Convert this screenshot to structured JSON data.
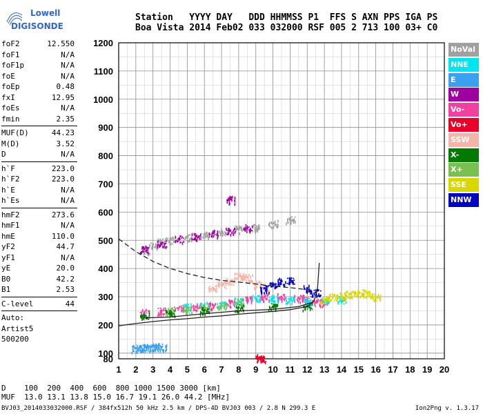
{
  "logo": {
    "line1": "Lowell",
    "line2": "DIGISONDE"
  },
  "header": {
    "line1": "Station   YYYY DAY   DDD HHMMSS P1  FFS S AXN PPS IGA PS",
    "line2": "Boa Vista 2014 Feb02 033 032000 RSF 005 2 713 100 03+ C0"
  },
  "params": {
    "group1": [
      {
        "label": "foF2",
        "value": "12.550"
      },
      {
        "label": "foF1",
        "value": "N/A"
      },
      {
        "label": "foF1p",
        "value": "N/A"
      },
      {
        "label": "foE",
        "value": "N/A"
      },
      {
        "label": "foEp",
        "value": "0.48"
      },
      {
        "label": "fxI",
        "value": "12.95"
      },
      {
        "label": "foEs",
        "value": "N/A"
      },
      {
        "label": "fmin",
        "value": "2.35"
      }
    ],
    "group2": [
      {
        "label": "MUF(D)",
        "value": "44.23"
      },
      {
        "label": "M(D)",
        "value": "3.52"
      },
      {
        "label": "D",
        "value": "N/A"
      }
    ],
    "group3": [
      {
        "label": "h`F",
        "value": "223.0"
      },
      {
        "label": "h`F2",
        "value": "223.0"
      },
      {
        "label": "h`E",
        "value": "N/A"
      },
      {
        "label": "h`Es",
        "value": "N/A"
      }
    ],
    "group4": [
      {
        "label": "hmF2",
        "value": "273.6"
      },
      {
        "label": "hmF1",
        "value": "N/A"
      },
      {
        "label": "hmE",
        "value": "110.0"
      },
      {
        "label": "yF2",
        "value": "44.7"
      },
      {
        "label": "yF1",
        "value": "N/A"
      },
      {
        "label": "yE",
        "value": "20.0"
      },
      {
        "label": "B0",
        "value": "42.2"
      },
      {
        "label": "B1",
        "value": "2.53"
      }
    ],
    "clevel": {
      "label": "C-level",
      "value": "44"
    },
    "auto": [
      "Auto:",
      "Artist5",
      "500200"
    ]
  },
  "legend": [
    {
      "label": "NoVal",
      "color": "#a0a0a0"
    },
    {
      "label": "NNE",
      "color": "#00e5ee"
    },
    {
      "label": "E",
      "color": "#3aa0f0"
    },
    {
      "label": "W",
      "color": "#a000a0"
    },
    {
      "label": "Vo-",
      "color": "#f040a0"
    },
    {
      "label": "Vo+",
      "color": "#e8002a"
    },
    {
      "label": "SSW",
      "color": "#f5b4a8"
    },
    {
      "label": "X-",
      "color": "#007a00"
    },
    {
      "label": "X+",
      "color": "#78c050"
    },
    {
      "label": "SSE",
      "color": "#d8d800"
    },
    {
      "label": "NNW",
      "color": "#0000c0"
    }
  ],
  "bottom": {
    "line1": "D    100  200  400  600  800 1000 1500 3000 [km]",
    "line2": "MUF  13.0 13.1 13.8 15.0 16.7 19.1 26.0 44.2 [MHz]"
  },
  "footer": {
    "left": "BVJ03_2014033032000.RSF / 384fx512h 50 kHz 2.5 km / DPS-4D BVJ03 003 / 2.8 N 299.3 E",
    "right": "Ion2Png v. 1.3.17"
  },
  "chart_data": {
    "type": "scatter",
    "title": "",
    "xlabel": "",
    "ylabel": "",
    "xlim": [
      1,
      20
    ],
    "ylim": [
      80,
      1200
    ],
    "xticks": [
      1,
      2,
      3,
      4,
      5,
      6,
      7,
      8,
      9,
      10,
      11,
      12,
      13,
      14,
      15,
      16,
      17,
      18,
      19,
      20
    ],
    "yticks": [
      80,
      100,
      200,
      300,
      400,
      500,
      600,
      700,
      800,
      900,
      1000,
      1100,
      1200
    ],
    "grid": true,
    "legend_position": "right",
    "series": [
      {
        "name": "E",
        "color": "#3aa0f0",
        "points": [
          [
            2.0,
            118
          ],
          [
            2.3,
            120
          ],
          [
            2.6,
            122
          ],
          [
            2.9,
            121
          ],
          [
            3.2,
            124
          ],
          [
            3.5,
            122
          ]
        ]
      },
      {
        "name": "Vo-",
        "color": "#f040a0",
        "points": [
          [
            2.5,
            245
          ],
          [
            3.5,
            250
          ],
          [
            4.5,
            260
          ],
          [
            5.5,
            265
          ],
          [
            6.5,
            270
          ],
          [
            7.5,
            280
          ],
          [
            8.5,
            295
          ],
          [
            9.5,
            300
          ],
          [
            10.5,
            300
          ],
          [
            11.5,
            295
          ],
          [
            12.0,
            290
          ],
          [
            12.5,
            280
          ],
          [
            13.0,
            280
          ]
        ]
      },
      {
        "name": "NoVal",
        "color": "#a0a0a0",
        "points": [
          [
            2.5,
            465
          ],
          [
            3.0,
            485
          ],
          [
            3.5,
            495
          ],
          [
            4.0,
            500
          ],
          [
            5.0,
            510
          ],
          [
            6.0,
            520
          ],
          [
            7.0,
            530
          ],
          [
            8.0,
            540
          ],
          [
            9.0,
            545
          ],
          [
            10.0,
            560
          ],
          [
            11.0,
            575
          ]
        ]
      },
      {
        "name": "W",
        "color": "#a000a0",
        "points": [
          [
            2.5,
            470
          ],
          [
            3.5,
            490
          ],
          [
            4.5,
            505
          ],
          [
            5.5,
            515
          ],
          [
            6.5,
            525
          ],
          [
            7.5,
            535
          ],
          [
            8.5,
            545
          ],
          [
            7.5,
            645
          ]
        ]
      },
      {
        "name": "Vo+",
        "color": "#e8002a",
        "points": [
          [
            9.2,
            85
          ],
          [
            9.3,
            80
          ]
        ]
      },
      {
        "name": "SSW",
        "color": "#f5b4a8",
        "points": [
          [
            6.5,
            330
          ],
          [
            7.0,
            345
          ],
          [
            7.5,
            355
          ],
          [
            8.0,
            375
          ],
          [
            8.5,
            370
          ],
          [
            9.0,
            345
          ],
          [
            9.5,
            330
          ]
        ]
      },
      {
        "name": "NNE",
        "color": "#00e5ee",
        "points": [
          [
            5.0,
            265
          ],
          [
            6.0,
            270
          ],
          [
            7.0,
            275
          ],
          [
            8.0,
            285
          ],
          [
            9.0,
            295
          ],
          [
            10.0,
            295
          ],
          [
            11.0,
            290
          ],
          [
            12.0,
            285
          ],
          [
            13.0,
            285
          ],
          [
            14.0,
            290
          ]
        ]
      },
      {
        "name": "NNW",
        "color": "#0000c0",
        "points": [
          [
            9.5,
            330
          ],
          [
            10.0,
            345
          ],
          [
            10.5,
            355
          ],
          [
            11.0,
            360
          ],
          [
            12.0,
            330
          ],
          [
            12.5,
            315
          ]
        ]
      },
      {
        "name": "SSE",
        "color": "#d8d800",
        "points": [
          [
            13.0,
            290
          ],
          [
            13.5,
            300
          ],
          [
            14.0,
            305
          ],
          [
            14.5,
            310
          ],
          [
            15.0,
            315
          ],
          [
            15.5,
            312
          ],
          [
            16.0,
            300
          ]
        ]
      },
      {
        "name": "X+",
        "color": "#78c050",
        "points": [
          [
            4.0,
            250
          ],
          [
            5.0,
            255
          ],
          [
            6.0,
            262
          ],
          [
            7.0,
            268
          ],
          [
            8.0,
            282
          ]
        ]
      },
      {
        "name": "X-",
        "color": "#007a00",
        "points": [
          [
            2.5,
            235
          ],
          [
            4.0,
            242
          ],
          [
            6.0,
            252
          ],
          [
            8.0,
            262
          ],
          [
            10.0,
            265
          ],
          [
            12.0,
            265
          ]
        ]
      }
    ],
    "curves": [
      {
        "style": "solid",
        "points": [
          [
            1.0,
            197
          ],
          [
            2.0,
            205
          ],
          [
            3.0,
            212
          ],
          [
            4.0,
            218
          ],
          [
            5.0,
            222
          ],
          [
            6.0,
            228
          ],
          [
            7.0,
            232
          ],
          [
            8.0,
            238
          ],
          [
            9.0,
            243
          ],
          [
            10.0,
            248
          ],
          [
            11.0,
            254
          ],
          [
            12.0,
            265
          ],
          [
            12.4,
            285
          ],
          [
            12.6,
            330
          ],
          [
            12.7,
            420
          ]
        ]
      },
      {
        "style": "solid",
        "points": [
          [
            2.5,
            225
          ],
          [
            4.0,
            228
          ],
          [
            6.0,
            240
          ],
          [
            8.0,
            250
          ],
          [
            10.0,
            255
          ],
          [
            11.5,
            265
          ],
          [
            12.3,
            280
          ]
        ]
      },
      {
        "style": "dashed",
        "points": [
          [
            1.0,
            505
          ],
          [
            2.0,
            460
          ],
          [
            3.0,
            425
          ],
          [
            4.0,
            400
          ],
          [
            5.0,
            382
          ],
          [
            6.0,
            368
          ],
          [
            7.0,
            358
          ],
          [
            8.0,
            352
          ],
          [
            9.0,
            345
          ],
          [
            10.0,
            338
          ],
          [
            11.0,
            332
          ],
          [
            12.0,
            325
          ],
          [
            12.5,
            322
          ]
        ]
      }
    ]
  }
}
